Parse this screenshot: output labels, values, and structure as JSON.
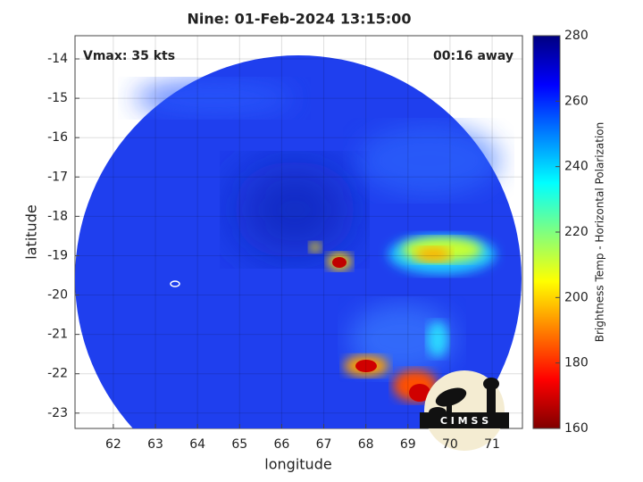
{
  "chart_data": {
    "type": "map",
    "title": "Nine: 01-Feb-2024 13:15:00",
    "annotations": [
      "Vmax: 35 kts",
      "00:16 away"
    ],
    "xlabel": "longitude",
    "ylabel": "latitude",
    "xlim": [
      61.09,
      71.72
    ],
    "xticks": [
      62,
      63,
      64,
      65,
      66,
      67,
      68,
      69,
      70,
      71
    ],
    "ylim": [
      -23.39,
      -13.41
    ],
    "yticks": [
      -23,
      -22,
      -21,
      -20,
      -19,
      -18,
      -17,
      -16,
      -15,
      -14
    ],
    "grid": true,
    "colorbar": {
      "label": "Brightness Temp - Horizontal Polarization",
      "lim": [
        160,
        280
      ],
      "ticks": [
        160,
        180,
        200,
        220,
        240,
        260,
        280
      ]
    },
    "logo_text": "C I M S S"
  }
}
